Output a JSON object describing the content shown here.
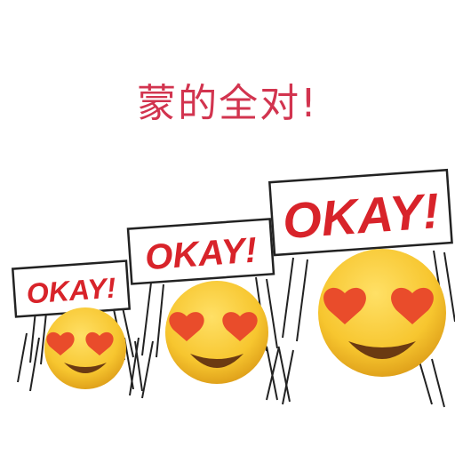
{
  "caption": "蒙的全对!",
  "signs": [
    {
      "text": "OKAY!"
    },
    {
      "text": "OKAY!"
    },
    {
      "text": "OKAY!"
    }
  ],
  "colors": {
    "caption": "#d2344f",
    "sign_text": "#d8232a",
    "face": "#f7c62f",
    "face_edge": "#e0a21b",
    "heart": "#e94c2b",
    "mouth": "#6b3a12"
  },
  "icons": [
    "heart-eyes-emoji",
    "protest-sign"
  ]
}
